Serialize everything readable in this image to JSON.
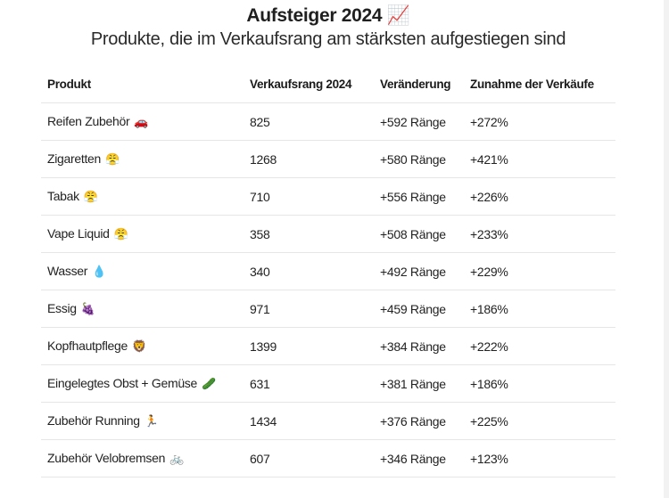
{
  "title": "Aufsteiger 2024",
  "title_emoji": "📈",
  "subtitle": "Produkte, die im Verkaufsrang am stärksten aufgestiegen sind",
  "columns": [
    "Produkt",
    "Verkaufsrang 2024",
    "Veränderung",
    "Zunahme der Verkäufe"
  ],
  "rows": [
    {
      "product": "Reifen Zubehör",
      "emoji": "🚗",
      "rank": "825",
      "change": "+592 Ränge",
      "increase": "+272%"
    },
    {
      "product": "Zigaretten",
      "emoji": "😤",
      "rank": "1268",
      "change": "+580 Ränge",
      "increase": "+421%"
    },
    {
      "product": "Tabak",
      "emoji": "😤",
      "rank": "710",
      "change": "+556 Ränge",
      "increase": "+226%"
    },
    {
      "product": "Vape Liquid",
      "emoji": "😤",
      "rank": "358",
      "change": "+508 Ränge",
      "increase": "+233%"
    },
    {
      "product": "Wasser",
      "emoji": "💧",
      "rank": "340",
      "change": "+492 Ränge",
      "increase": "+229%"
    },
    {
      "product": "Essig",
      "emoji": "🍇",
      "rank": "971",
      "change": "+459 Ränge",
      "increase": "+186%"
    },
    {
      "product": "Kopfhautpflege",
      "emoji": "🦁",
      "rank": "1399",
      "change": "+384 Ränge",
      "increase": "+222%"
    },
    {
      "product": "Eingelegtes Obst + Gemüse",
      "emoji": "🥒",
      "rank": "631",
      "change": "+381 Ränge",
      "increase": "+186%"
    },
    {
      "product": "Zubehör Running",
      "emoji": "🏃",
      "rank": "1434",
      "change": "+376 Ränge",
      "increase": "+225%"
    },
    {
      "product": "Zubehör Velobremsen",
      "emoji": "🚲",
      "rank": "607",
      "change": "+346 Ränge",
      "increase": "+123%"
    }
  ]
}
